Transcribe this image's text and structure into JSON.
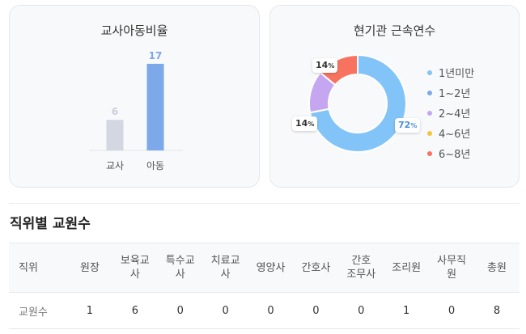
{
  "ratio_card": {
    "title": "교사아동비율"
  },
  "tenure_card": {
    "title": "현기관 근속연수",
    "legend": [
      {
        "label": "1년미만",
        "color": "#82c4f8"
      },
      {
        "label": "1~2년",
        "color": "#7da8ea"
      },
      {
        "label": "2~4년",
        "color": "#c4a7f0"
      },
      {
        "label": "4~6년",
        "color": "#f6c342"
      },
      {
        "label": "6~8년",
        "color": "#f8735f"
      }
    ],
    "labels": {
      "s0": "72",
      "s2": "14",
      "s4": "14",
      "unit": "%"
    }
  },
  "chart_data": [
    {
      "type": "bar",
      "title": "교사아동비율",
      "categories": [
        "교사",
        "아동"
      ],
      "values": [
        6,
        17
      ],
      "colors": [
        "#d2d7e2",
        "#7da8ea"
      ],
      "value_label_colors": [
        "#c8cdd8",
        "#7da8ea"
      ]
    },
    {
      "type": "pie",
      "title": "현기관 근속연수",
      "categories": [
        "1년미만",
        "1~2년",
        "2~4년",
        "4~6년",
        "6~8년"
      ],
      "values": [
        72,
        0,
        14,
        0,
        14
      ],
      "colors": [
        "#82c4f8",
        "#7da8ea",
        "#c4a7f0",
        "#f6c342",
        "#f8735f"
      ]
    }
  ],
  "staff_section": {
    "title": "직위별 교원수",
    "headers": [
      "직위",
      "원장",
      "보육교\n사",
      "특수교\n사",
      "치료교\n사",
      "영양사",
      "간호사",
      "간호\n조무사",
      "조리원",
      "사무직\n원",
      "총원"
    ],
    "row_label": "교원수",
    "values": [
      "1",
      "6",
      "0",
      "0",
      "0",
      "0",
      "0",
      "1",
      "0",
      "8"
    ]
  }
}
